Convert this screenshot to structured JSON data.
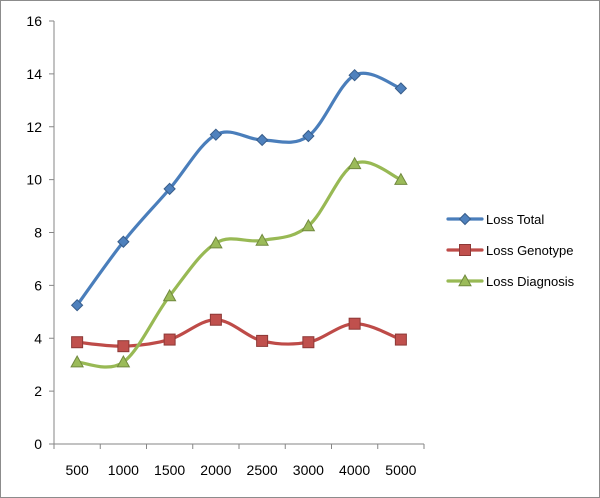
{
  "chart_data": {
    "type": "line",
    "title": "",
    "xlabel": "",
    "ylabel": "",
    "categories": [
      "500",
      "1000",
      "1500",
      "2000",
      "2500",
      "3000",
      "4000",
      "5000"
    ],
    "ylim": [
      0,
      16
    ],
    "yticks": [
      0,
      2,
      4,
      6,
      8,
      10,
      12,
      14,
      16
    ],
    "grid": false,
    "smooth": true,
    "legend_position": "right",
    "series": [
      {
        "name": "Loss Total",
        "color": "#4a7ebb",
        "marker": "diamond",
        "marker_fill": "#4f81bd",
        "values": [
          5.25,
          7.65,
          9.65,
          11.7,
          11.5,
          11.65,
          13.95,
          13.45
        ]
      },
      {
        "name": "Loss Genotype",
        "color": "#be4b48",
        "marker": "square",
        "marker_fill": "#c0504d",
        "values": [
          3.85,
          3.7,
          3.95,
          4.7,
          3.9,
          3.85,
          4.55,
          3.95
        ]
      },
      {
        "name": "Loss Diagnosis",
        "color": "#98b954",
        "marker": "triangle",
        "marker_fill": "#9bbb59",
        "values": [
          3.1,
          3.1,
          5.6,
          7.6,
          7.7,
          8.25,
          10.6,
          10.0
        ]
      }
    ]
  }
}
